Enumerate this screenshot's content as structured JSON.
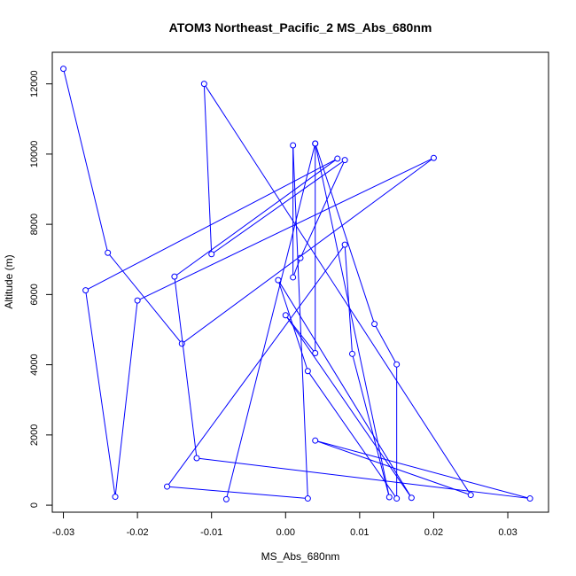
{
  "chart_data": {
    "type": "line",
    "title": "ATOM3 Northeast_Pacific_2 MS_Abs_680nm",
    "xlabel": "MS_Abs_680nm",
    "ylabel": "Altitude (m)",
    "xlim": [
      -0.0315,
      0.0355
    ],
    "ylim": [
      -200,
      12900
    ],
    "x_ticks": [
      -0.03,
      -0.02,
      -0.01,
      0.0,
      0.01,
      0.02,
      0.03
    ],
    "x_tick_labels": [
      "-0.03",
      "-0.02",
      "-0.01",
      "0.00",
      "0.01",
      "0.02",
      "0.03"
    ],
    "y_ticks": [
      0,
      2000,
      4000,
      6000,
      8000,
      10000,
      12000
    ],
    "y_tick_labels": [
      "0",
      "2000",
      "4000",
      "6000",
      "8000",
      "10000",
      "12000"
    ],
    "grid": false,
    "legend": "none",
    "line_color": "#0000ff",
    "marker": "open-circle",
    "series": [
      {
        "x": [
          -0.03,
          -0.024,
          -0.014,
          0.02,
          -0.02,
          -0.023,
          -0.027,
          0.007,
          -0.015,
          -0.012,
          0.033,
          0.004,
          0.025,
          -0.011,
          -0.01,
          0.008,
          0.002,
          0.001,
          0.001,
          0.003,
          -0.016,
          0.008,
          0.009,
          0.014,
          0.004,
          0.004,
          0.0,
          0.017,
          -0.001,
          0.003,
          0.015,
          0.015,
          0.012,
          0.004,
          -0.008
        ],
        "y": [
          12430,
          7190,
          4600,
          9890,
          5830,
          240,
          6120,
          9870,
          6510,
          1340,
          190,
          1840,
          290,
          12000,
          7150,
          9830,
          7040,
          6490,
          10250,
          190,
          530,
          7420,
          4310,
          230,
          10300,
          4330,
          5410,
          210,
          6410,
          3820,
          190,
          4010,
          5160,
          10300,
          170
        ]
      }
    ]
  }
}
